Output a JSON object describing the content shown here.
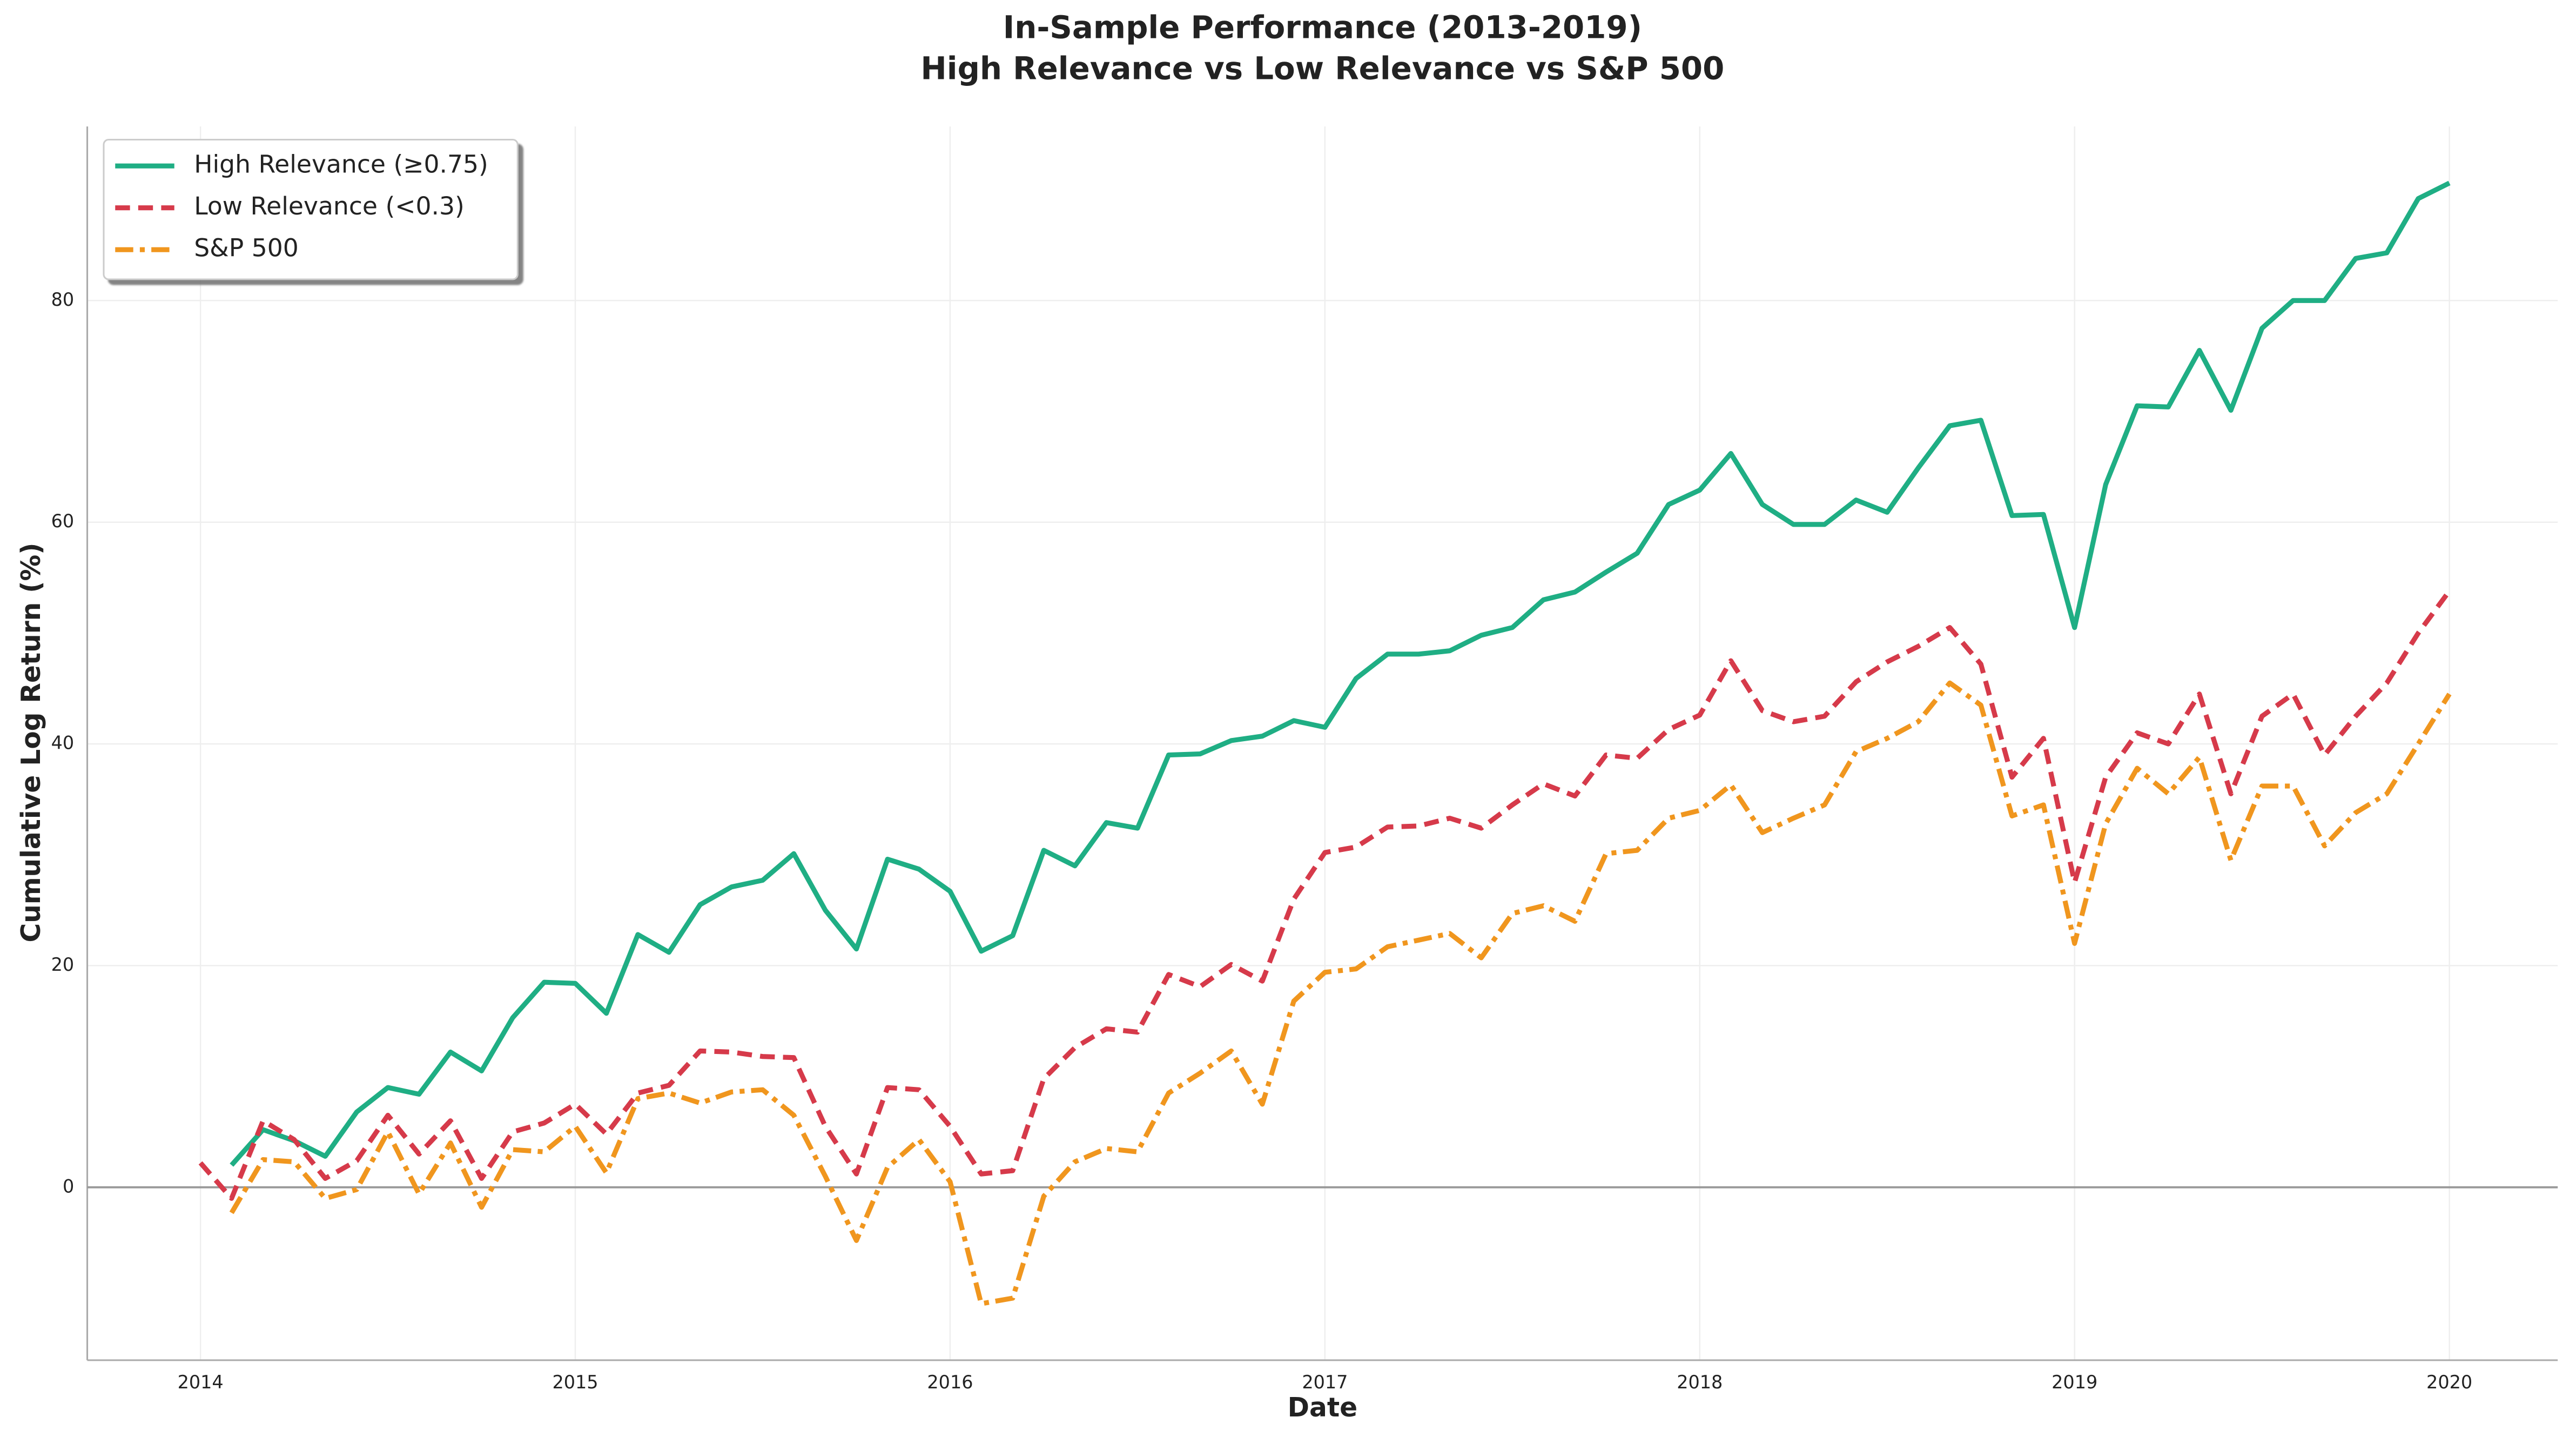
{
  "chart_data": {
    "type": "line",
    "title": [
      "In-Sample Performance (2013-2019)",
      "High Relevance vs Low Relevance vs S&P 500"
    ],
    "x_label": "Date",
    "y_label": "Cumulative Log Return (%)",
    "xlim": [
      2013.698,
      2020.289
    ],
    "ylim": [
      -15.6,
      95.7
    ],
    "xticks": [
      2014,
      2015,
      2016,
      2017,
      2018,
      2019,
      2020
    ],
    "yticks": [
      0,
      20,
      40,
      60,
      80
    ],
    "grid": true,
    "axhline": 0,
    "legend": "upper left",
    "x": [
      2014,
      2014.083,
      2014.167,
      2014.25,
      2014.333,
      2014.417,
      2014.5,
      2014.583,
      2014.667,
      2014.75,
      2014.833,
      2014.917,
      2015,
      2015.083,
      2015.167,
      2015.25,
      2015.333,
      2015.417,
      2015.5,
      2015.583,
      2015.667,
      2015.75,
      2015.833,
      2015.917,
      2016,
      2016.083,
      2016.167,
      2016.25,
      2016.333,
      2016.417,
      2016.5,
      2016.583,
      2016.667,
      2016.75,
      2016.833,
      2016.917,
      2017,
      2017.083,
      2017.167,
      2017.25,
      2017.333,
      2017.417,
      2017.5,
      2017.583,
      2017.667,
      2017.75,
      2017.833,
      2017.917,
      2018,
      2018.083,
      2018.167,
      2018.25,
      2018.333,
      2018.417,
      2018.5,
      2018.583,
      2018.667,
      2018.75,
      2018.833,
      2018.917,
      2019,
      2019.083,
      2019.167,
      2019.25,
      2019.333,
      2019.417,
      2019.5,
      2019.583,
      2019.667,
      2019.75,
      2019.833,
      2019.917,
      2020
    ],
    "series": [
      {
        "name": "High Relevance (≥0.75)",
        "color": "#1fae84",
        "linestyle": "solid",
        "values": [
          null,
          2.0,
          5.2,
          4.2,
          2.8,
          6.8,
          9.0,
          8.4,
          12.2,
          10.5,
          15.3,
          18.5,
          18.4,
          15.7,
          22.8,
          21.2,
          25.5,
          27.1,
          27.7,
          30.1,
          25.0,
          21.5,
          29.6,
          28.7,
          26.7,
          21.3,
          22.7,
          30.4,
          29.0,
          32.9,
          32.4,
          39.0,
          39.1,
          40.3,
          40.7,
          42.1,
          41.5,
          45.9,
          48.1,
          48.1,
          48.4,
          49.8,
          50.5,
          53.0,
          53.7,
          55.5,
          57.2,
          61.6,
          62.9,
          66.2,
          61.6,
          59.8,
          59.8,
          62.0,
          60.9,
          64.9,
          68.7,
          69.2,
          60.6,
          60.7,
          50.5,
          63.4,
          70.5,
          70.4,
          75.5,
          70.1,
          77.5,
          80.0,
          80.0,
          83.8,
          84.3,
          89.2,
          90.6
        ]
      },
      {
        "name": "Low Relevance (<0.3)",
        "color": "#d63a4a",
        "linestyle": "dashed",
        "values": [
          2.2,
          -1.0,
          6.0,
          4.3,
          0.8,
          2.4,
          6.5,
          3.0,
          6.0,
          0.8,
          5.0,
          5.8,
          7.5,
          4.8,
          8.5,
          9.2,
          12.3,
          12.2,
          11.8,
          11.7,
          5.5,
          1.2,
          9.0,
          8.8,
          5.5,
          1.2,
          1.5,
          9.8,
          12.6,
          14.3,
          14.0,
          19.2,
          18.1,
          20.1,
          18.6,
          26.0,
          30.2,
          30.7,
          32.5,
          32.6,
          33.3,
          32.4,
          34.5,
          36.4,
          35.3,
          39.0,
          38.7,
          41.3,
          42.6,
          47.5,
          43.0,
          42.0,
          42.5,
          45.6,
          47.4,
          48.8,
          50.5,
          47.2,
          37.0,
          40.5,
          27.5,
          37.0,
          41.0,
          40.0,
          44.5,
          35.5,
          42.5,
          44.5,
          39.0,
          42.5,
          45.5,
          50.0,
          53.8
        ]
      },
      {
        "name": "S&P 500",
        "color": "#f0961e",
        "linestyle": "dashdot",
        "values": [
          null,
          -2.3,
          2.5,
          2.3,
          -1.0,
          -0.2,
          5.0,
          -0.6,
          4.0,
          -1.8,
          3.4,
          3.2,
          5.5,
          1.3,
          8.0,
          8.5,
          7.6,
          8.6,
          8.8,
          6.5,
          1.0,
          -4.8,
          1.8,
          4.3,
          0.5,
          -10.5,
          -10.0,
          -0.8,
          2.3,
          3.5,
          3.2,
          8.5,
          10.3,
          12.3,
          7.5,
          16.8,
          19.4,
          19.7,
          21.7,
          22.3,
          22.9,
          20.7,
          24.7,
          25.4,
          24.0,
          30.1,
          30.4,
          33.3,
          34.0,
          36.3,
          32.0,
          33.3,
          34.5,
          39.3,
          40.5,
          42.0,
          45.5,
          43.5,
          33.5,
          34.5,
          22.0,
          32.8,
          37.8,
          35.5,
          38.8,
          29.5,
          36.2,
          36.2,
          30.8,
          33.8,
          35.5,
          40.0,
          44.5
        ]
      }
    ]
  }
}
